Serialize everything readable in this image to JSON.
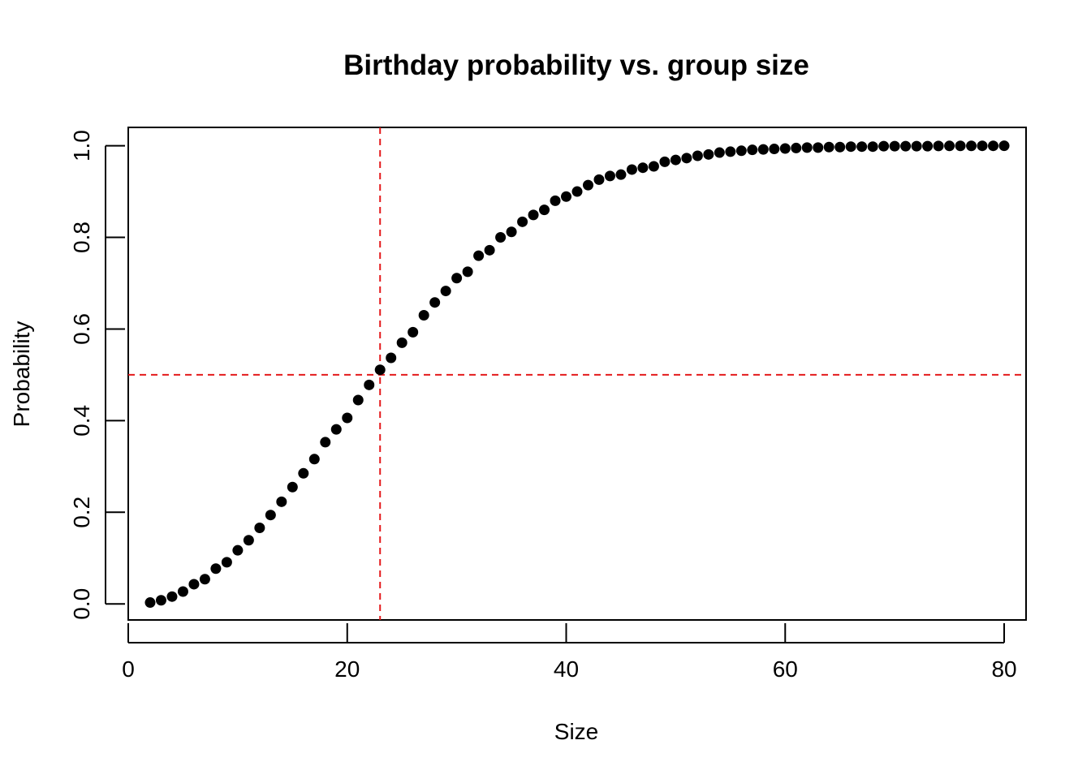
{
  "chart_data": {
    "type": "scatter",
    "title": "Birthday probability vs. group size",
    "xlabel": "Size",
    "ylabel": "Probability",
    "xlim": [
      0,
      82
    ],
    "ylim": [
      -0.035,
      1.04
    ],
    "x_ticks": [
      "0",
      "20",
      "40",
      "60",
      "80"
    ],
    "y_ticks": [
      "0.0",
      "0.2",
      "0.4",
      "0.6",
      "0.8",
      "1.0"
    ],
    "grid": false,
    "legend": "none",
    "point_color": "#000000",
    "reference_color": "#e41a1c",
    "reference_lines": {
      "x": 23,
      "y": 0.5
    },
    "x": [
      2,
      3,
      4,
      5,
      6,
      7,
      8,
      9,
      10,
      11,
      12,
      13,
      14,
      15,
      16,
      17,
      18,
      19,
      20,
      21,
      22,
      23,
      24,
      25,
      26,
      27,
      28,
      29,
      30,
      31,
      32,
      33,
      34,
      35,
      36,
      37,
      38,
      39,
      40,
      41,
      42,
      43,
      44,
      45,
      46,
      47,
      48,
      49,
      50,
      51,
      52,
      53,
      54,
      55,
      56,
      57,
      58,
      59,
      60,
      61,
      62,
      63,
      64,
      65,
      66,
      67,
      68,
      69,
      70,
      71,
      72,
      73,
      74,
      75,
      76,
      77,
      78,
      79,
      80
    ],
    "y": [
      0.003,
      0.008,
      0.016,
      0.027,
      0.043,
      0.054,
      0.077,
      0.091,
      0.117,
      0.139,
      0.166,
      0.194,
      0.223,
      0.255,
      0.285,
      0.316,
      0.353,
      0.381,
      0.406,
      0.445,
      0.478,
      0.511,
      0.537,
      0.57,
      0.593,
      0.63,
      0.658,
      0.683,
      0.711,
      0.725,
      0.76,
      0.772,
      0.8,
      0.812,
      0.834,
      0.849,
      0.86,
      0.88,
      0.889,
      0.9,
      0.914,
      0.926,
      0.934,
      0.937,
      0.948,
      0.952,
      0.955,
      0.965,
      0.969,
      0.973,
      0.978,
      0.981,
      0.985,
      0.987,
      0.989,
      0.991,
      0.992,
      0.993,
      0.994,
      0.995,
      0.996,
      0.996,
      0.997,
      0.997,
      0.998,
      0.998,
      0.998,
      0.999,
      0.999,
      0.999,
      0.999,
      0.999,
      0.9995,
      0.9996,
      0.9997,
      0.9997,
      0.9998,
      0.9998,
      0.9999
    ]
  }
}
